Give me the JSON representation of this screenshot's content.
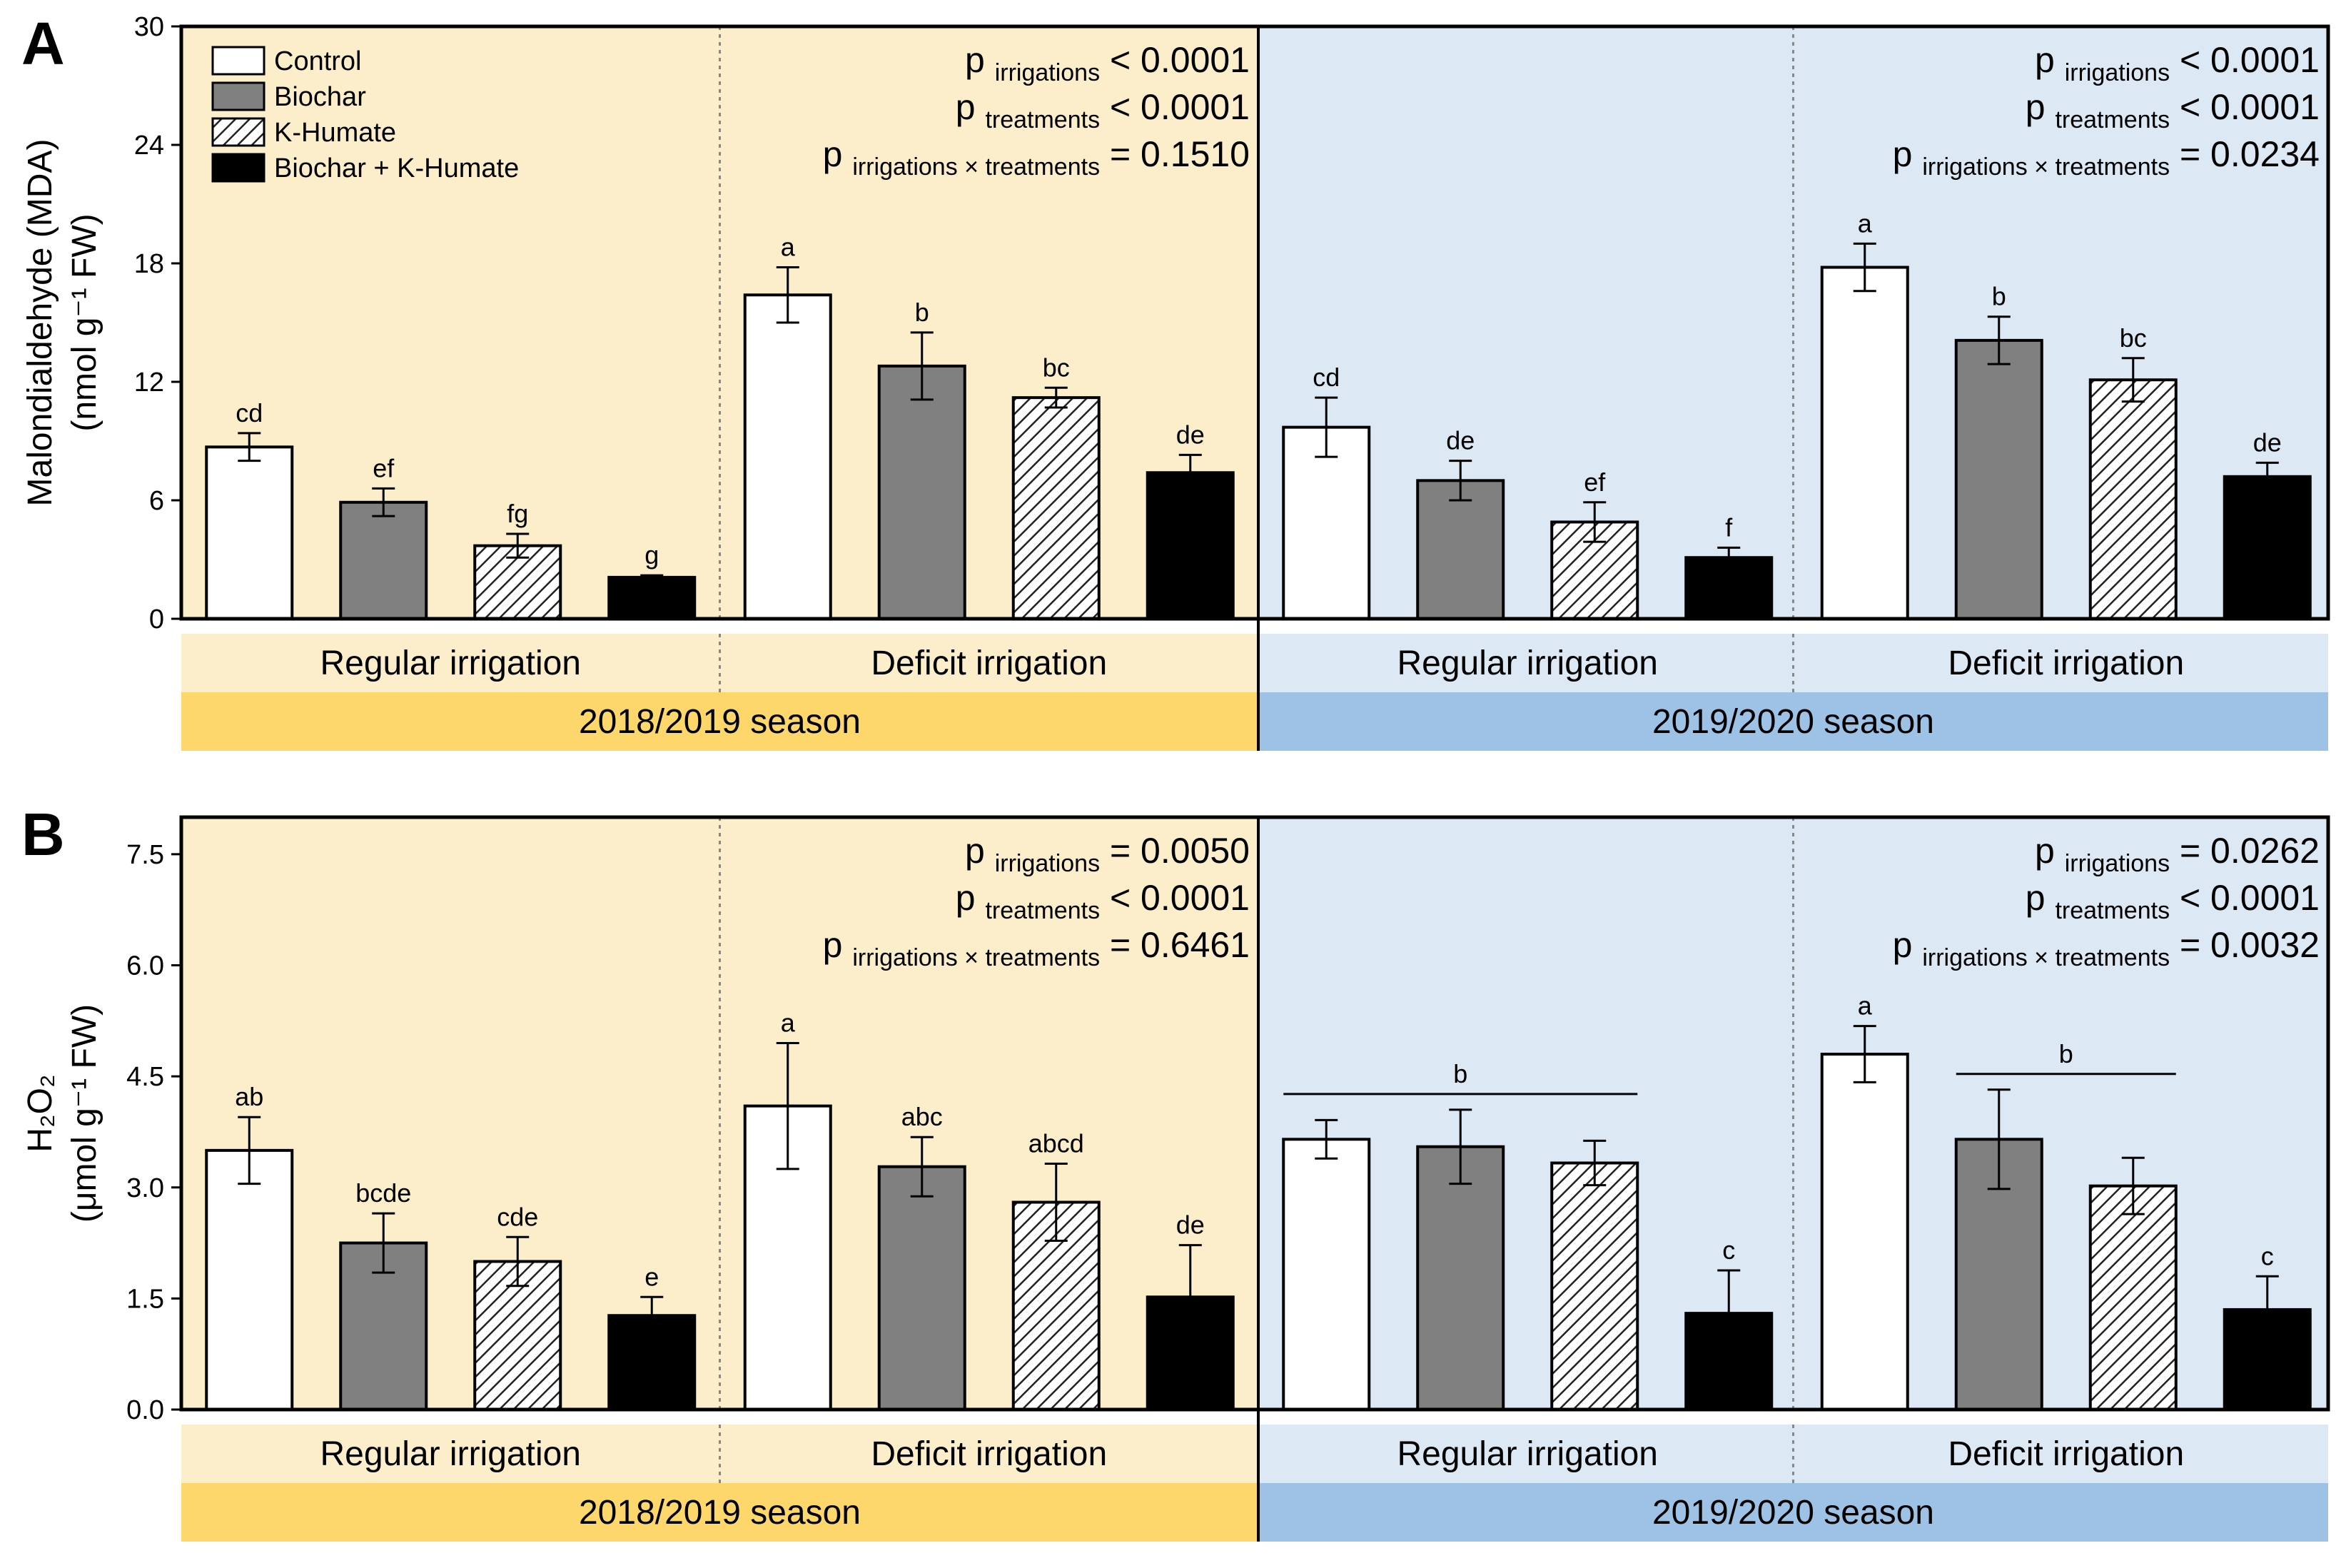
{
  "colors": {
    "season1_bg": "#FCEDCB",
    "season1_band": "#FDD76B",
    "season2_bg": "#DDE8F5",
    "season2_band": "#9DC2E6",
    "control": "#FFFFFF",
    "biochar": "#808080",
    "khumate_stripe": "#222222",
    "biochar_khumate": "#000000"
  },
  "legend": [
    {
      "name": "Control",
      "icon": "control-swatch"
    },
    {
      "name": "Biochar",
      "icon": "biochar-swatch"
    },
    {
      "name": "K-Humate",
      "icon": "khumate-hatched-swatch"
    },
    {
      "name": "Biochar + K-Humate",
      "icon": "biochar-khumate-swatch"
    }
  ],
  "p_labels": {
    "p": "p",
    "irrigations": "irrigations",
    "treatments": "treatments",
    "interaction": "irrigations × treatments"
  },
  "chart_data": [
    {
      "type": "bar",
      "panel_label": "A",
      "ylabel_line1": "Malondialdehyde (MDA)",
      "ylabel_line2": "(nmol g⁻¹ FW)",
      "ylim": [
        0,
        30
      ],
      "yticks": [
        "0",
        "6",
        "12",
        "18",
        "24",
        "30"
      ],
      "series_names": [
        "Control",
        "Biochar",
        "K-Humate",
        "Biochar + K-Humate"
      ],
      "seasons": [
        {
          "label": "2018/2019 season",
          "p_irrigations": "< 0.0001",
          "p_treatments": "< 0.0001",
          "p_interaction": "= 0.1510"
        },
        {
          "label": "2019/2020 season",
          "p_irrigations": "< 0.0001",
          "p_treatments": "< 0.0001",
          "p_interaction": "= 0.0234"
        }
      ],
      "groups": [
        {
          "irrigation": "Regular irrigation",
          "season": 0,
          "values": [
            8.7,
            5.9,
            3.7,
            2.1
          ],
          "errors": [
            0.7,
            0.7,
            0.6,
            0.1
          ],
          "letters": [
            "cd",
            "ef",
            "fg",
            "g"
          ]
        },
        {
          "irrigation": "Deficit irrigation",
          "season": 0,
          "values": [
            16.4,
            12.8,
            11.2,
            7.4
          ],
          "errors": [
            1.4,
            1.7,
            0.5,
            0.9
          ],
          "letters": [
            "a",
            "b",
            "bc",
            "de"
          ]
        },
        {
          "irrigation": "Regular irrigation",
          "season": 1,
          "values": [
            9.7,
            7.0,
            4.9,
            3.1
          ],
          "errors": [
            1.5,
            1.0,
            1.0,
            0.5
          ],
          "letters": [
            "cd",
            "de",
            "ef",
            "f"
          ]
        },
        {
          "irrigation": "Deficit irrigation",
          "season": 1,
          "values": [
            17.8,
            14.1,
            12.1,
            7.2
          ],
          "errors": [
            1.2,
            1.2,
            1.1,
            0.7
          ],
          "letters": [
            "a",
            "b",
            "bc",
            "de"
          ]
        }
      ]
    },
    {
      "type": "bar",
      "panel_label": "B",
      "ylabel_line1": "H₂O₂",
      "ylabel_line2": "(μmol g⁻¹ FW)",
      "ylim": [
        0,
        8
      ],
      "yticks": [
        "0.0",
        "1.5",
        "3.0",
        "4.5",
        "6.0",
        "7.5"
      ],
      "series_names": [
        "Control",
        "Biochar",
        "K-Humate",
        "Biochar + K-Humate"
      ],
      "seasons": [
        {
          "label": "2018/2019 season",
          "p_irrigations": "= 0.0050",
          "p_treatments": "< 0.0001",
          "p_interaction": "= 0.6461"
        },
        {
          "label": "2019/2020 season",
          "p_irrigations": "= 0.0262",
          "p_treatments": "< 0.0001",
          "p_interaction": "= 0.0032"
        }
      ],
      "groups": [
        {
          "irrigation": "Regular irrigation",
          "season": 0,
          "values": [
            3.5,
            2.25,
            2.0,
            1.27
          ],
          "errors": [
            0.45,
            0.4,
            0.33,
            0.25
          ],
          "letters": [
            "ab",
            "bcde",
            "cde",
            "e"
          ]
        },
        {
          "irrigation": "Deficit irrigation",
          "season": 0,
          "values": [
            4.1,
            3.28,
            2.8,
            1.52
          ],
          "errors": [
            0.85,
            0.4,
            0.52,
            0.7
          ],
          "letters": [
            "a",
            "abc",
            "abcd",
            "de"
          ]
        },
        {
          "irrigation": "Regular irrigation",
          "season": 1,
          "values": [
            3.65,
            3.55,
            3.33,
            1.3
          ],
          "errors": [
            0.26,
            0.5,
            0.3,
            0.58
          ],
          "letters": [
            "",
            "",
            "",
            "c"
          ],
          "bracket": {
            "label": "b",
            "from": 0,
            "to": 2
          }
        },
        {
          "irrigation": "Deficit irrigation",
          "season": 1,
          "values": [
            4.8,
            3.65,
            3.02,
            1.35
          ],
          "errors": [
            0.38,
            0.67,
            0.38,
            0.45
          ],
          "letters": [
            "a",
            "",
            "",
            "c"
          ],
          "bracket": {
            "label": "b",
            "from": 1,
            "to": 2
          }
        }
      ]
    }
  ]
}
